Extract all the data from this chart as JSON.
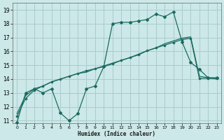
{
  "xlabel": "Humidex (Indice chaleur)",
  "bg_color": "#cce8e8",
  "grid_color": "#aacccc",
  "line_color": "#1a6b60",
  "xlim": [
    -0.5,
    23.5
  ],
  "ylim": [
    10.8,
    19.5
  ],
  "xtick_labels": [
    "0",
    "1",
    "2",
    "3",
    "4",
    "5",
    "6",
    "7",
    "8",
    "9",
    "10",
    "11",
    "12",
    "13",
    "14",
    "15",
    "16",
    "17",
    "18",
    "19",
    "20",
    "21",
    "22",
    "23"
  ],
  "ytick_labels": [
    "11",
    "12",
    "13",
    "14",
    "15",
    "16",
    "17",
    "18",
    "19"
  ],
  "ytick_vals": [
    11,
    12,
    13,
    14,
    15,
    16,
    17,
    18,
    19
  ],
  "series1_x": [
    0,
    1,
    2,
    3,
    4,
    5,
    6,
    7,
    8,
    9,
    10,
    11,
    12,
    13,
    14,
    15,
    16,
    17,
    18,
    19,
    20,
    21,
    22,
    23
  ],
  "series1_y": [
    10.85,
    13.0,
    13.3,
    13.0,
    13.3,
    11.55,
    11.0,
    11.5,
    13.3,
    13.5,
    14.9,
    18.0,
    18.1,
    18.1,
    18.2,
    18.3,
    18.7,
    18.5,
    18.85,
    16.7,
    15.2,
    14.7,
    14.1,
    14.1
  ],
  "series2_x": [
    0,
    1,
    2,
    3,
    4,
    5,
    6,
    7,
    8,
    9,
    10,
    11,
    12,
    13,
    14,
    15,
    16,
    17,
    18,
    19,
    20,
    21,
    22,
    23
  ],
  "series2_y": [
    11.3,
    12.6,
    13.2,
    13.5,
    13.8,
    14.0,
    14.2,
    14.4,
    14.6,
    14.75,
    14.9,
    15.1,
    15.35,
    15.55,
    15.75,
    16.05,
    16.25,
    16.45,
    16.65,
    16.85,
    16.95,
    14.05,
    14.05,
    14.05
  ],
  "series3_x": [
    0,
    1,
    2,
    3,
    4,
    5,
    6,
    7,
    8,
    9,
    10,
    11,
    12,
    13,
    14,
    15,
    16,
    17,
    18,
    19,
    20,
    21,
    22,
    23
  ],
  "series3_y": [
    11.5,
    12.8,
    13.3,
    13.5,
    13.8,
    14.0,
    14.2,
    14.4,
    14.5,
    14.75,
    14.95,
    15.15,
    15.35,
    15.55,
    15.8,
    16.05,
    16.25,
    16.55,
    16.75,
    16.95,
    17.05,
    14.2,
    14.1,
    14.0
  ]
}
